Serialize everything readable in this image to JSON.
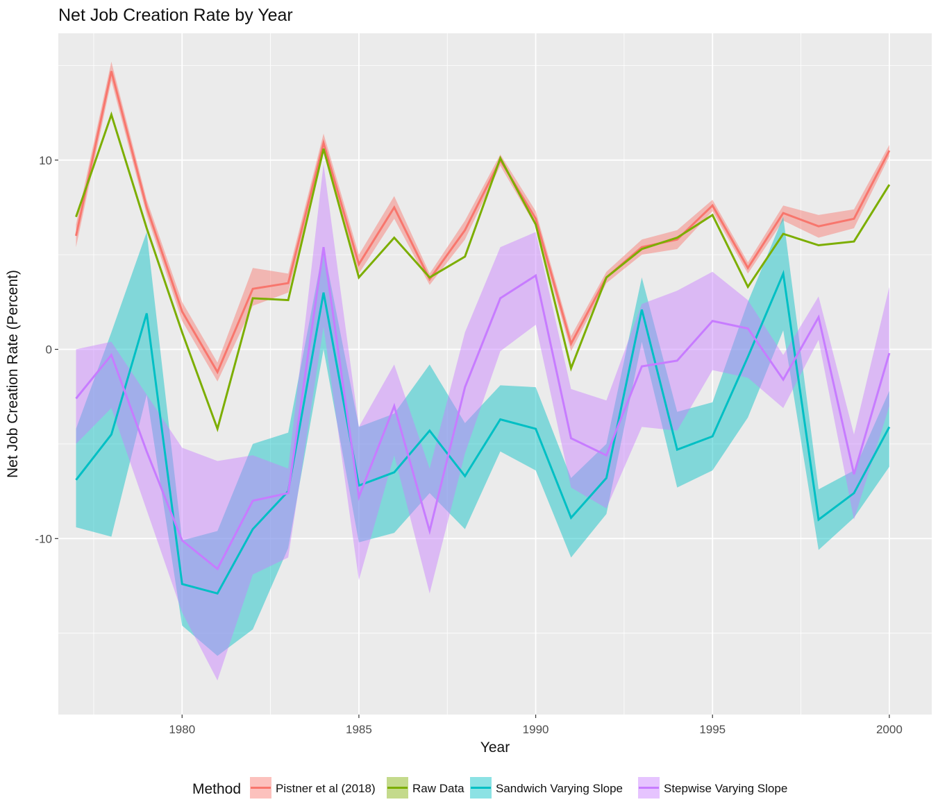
{
  "chart_data": {
    "type": "line",
    "title": "Net Job Creation Rate by Year",
    "xlabel": "Year",
    "ylabel": "Net Job Creation Rate (Percent)",
    "xlim": [
      1976.5,
      2001.2
    ],
    "ylim": [
      -19.3,
      16.7
    ],
    "x_ticks": [
      1980,
      1985,
      1990,
      1995,
      2000
    ],
    "y_ticks": [
      -10,
      0,
      10
    ],
    "grid": true,
    "legend_position": "bottom",
    "legend_title": "Method",
    "x": [
      1977,
      1978,
      1979,
      1980,
      1981,
      1982,
      1983,
      1984,
      1985,
      1986,
      1987,
      1988,
      1989,
      1990,
      1991,
      1992,
      1993,
      1994,
      1995,
      1996,
      1997,
      1998,
      1999,
      2000
    ],
    "series": [
      {
        "name": "Pistner et al (2018)",
        "color": "#F8766D",
        "values": [
          6.0,
          14.7,
          7.5,
          2.0,
          -1.2,
          3.2,
          3.5,
          10.9,
          4.5,
          7.5,
          3.7,
          6.3,
          10.0,
          6.9,
          0.3,
          3.8,
          5.4,
          5.8,
          7.6,
          4.3,
          7.2,
          6.5,
          6.9,
          10.5
        ],
        "lower": [
          5.4,
          14.2,
          7.1,
          1.5,
          -1.7,
          2.3,
          3.0,
          10.4,
          4.0,
          6.9,
          3.4,
          5.8,
          9.7,
          6.5,
          -0.1,
          3.5,
          5.0,
          5.3,
          7.3,
          4.0,
          6.8,
          5.9,
          6.4,
          10.2
        ],
        "upper": [
          6.6,
          15.2,
          7.9,
          2.5,
          -0.7,
          4.3,
          4.0,
          11.4,
          5.0,
          8.1,
          4.0,
          6.8,
          10.3,
          7.3,
          0.7,
          4.1,
          5.8,
          6.3,
          7.9,
          4.6,
          7.6,
          7.1,
          7.4,
          10.8
        ]
      },
      {
        "name": "Raw Data",
        "color": "#7CAE00",
        "values": [
          7.0,
          12.4,
          6.4,
          0.9,
          -4.2,
          2.7,
          2.6,
          10.6,
          3.8,
          5.9,
          3.8,
          4.9,
          10.1,
          6.6,
          -1.0,
          3.8,
          5.3,
          5.9,
          7.1,
          3.3,
          6.1,
          5.5,
          5.7,
          8.7
        ]
      },
      {
        "name": "Sandwich Varying Slope",
        "color": "#00BFC4",
        "values": [
          -6.9,
          -4.5,
          1.9,
          -12.4,
          -12.9,
          -9.5,
          -7.5,
          3.0,
          -7.2,
          -6.5,
          -4.3,
          -6.7,
          -3.7,
          -4.2,
          -8.9,
          -6.8,
          2.1,
          -5.3,
          -4.6,
          -0.4,
          4.0,
          -9.0,
          -7.6,
          -4.1
        ],
        "lower": [
          -9.4,
          -9.9,
          -2.4,
          -14.6,
          -16.2,
          -14.8,
          -10.5,
          0.0,
          -10.2,
          -9.7,
          -7.6,
          -9.5,
          -5.4,
          -6.4,
          -11.0,
          -8.7,
          0.4,
          -7.3,
          -6.4,
          -3.6,
          1.0,
          -10.6,
          -8.9,
          -6.2
        ],
        "upper": [
          -4.2,
          0.9,
          6.2,
          -10.1,
          -9.6,
          -5.0,
          -4.4,
          5.4,
          -4.1,
          -3.4,
          -0.8,
          -3.9,
          -1.9,
          -2.0,
          -6.8,
          -5.0,
          3.8,
          -3.3,
          -2.8,
          2.5,
          7.0,
          -7.4,
          -6.4,
          -2.2
        ]
      },
      {
        "name": "Stepwise Varying Slope",
        "color": "#C77CFF",
        "values": [
          -2.6,
          -0.3,
          -5.4,
          -10.1,
          -11.6,
          -8.0,
          -7.6,
          5.4,
          -7.8,
          -3.0,
          -9.6,
          -2.0,
          2.7,
          3.9,
          -4.7,
          -5.6,
          -0.9,
          -0.6,
          1.5,
          1.1,
          -1.6,
          1.7,
          -6.6,
          -0.2
        ],
        "lower": [
          -5.0,
          -3.1,
          -8.5,
          -13.9,
          -17.5,
          -11.9,
          -11.0,
          1.2,
          -12.2,
          -5.6,
          -12.9,
          -5.5,
          -0.1,
          1.3,
          -7.3,
          -8.4,
          -4.1,
          -4.3,
          -1.1,
          -1.5,
          -3.1,
          0.5,
          -9.0,
          -3.0
        ],
        "upper": [
          0.0,
          0.4,
          -2.4,
          -5.2,
          -5.9,
          -5.6,
          -6.3,
          9.8,
          -4.1,
          -0.8,
          -6.3,
          0.9,
          5.4,
          6.2,
          -2.1,
          -2.7,
          2.4,
          3.1,
          4.1,
          2.6,
          -0.3,
          2.8,
          -4.5,
          3.3
        ]
      }
    ]
  }
}
